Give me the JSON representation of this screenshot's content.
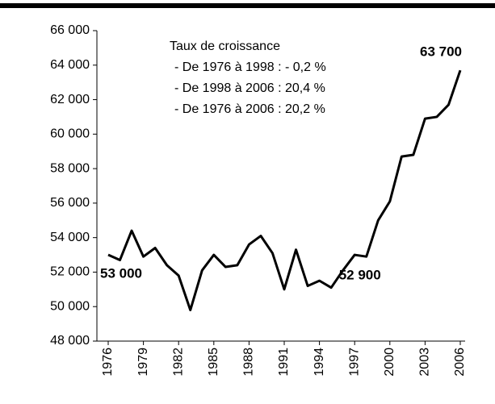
{
  "chart_data": {
    "type": "line",
    "annotations": [
      "Taux de croissance",
      "- De 1976 à 1998 : - 0,2 %",
      "- De 1998 à 2006 : 20,4 %",
      "- De 1976 à 2006 : 20,2 %"
    ],
    "x": [
      1976,
      1977,
      1978,
      1979,
      1980,
      1981,
      1982,
      1983,
      1984,
      1985,
      1986,
      1987,
      1988,
      1989,
      1990,
      1991,
      1992,
      1993,
      1994,
      1995,
      1996,
      1997,
      1998,
      1999,
      2000,
      2001,
      2002,
      2003,
      2004,
      2005,
      2006
    ],
    "series": [
      {
        "color": "#000000",
        "values": [
          53000,
          52700,
          54400,
          52900,
          53400,
          52400,
          51800,
          49800,
          52100,
          53000,
          52300,
          52400,
          53600,
          54100,
          53100,
          51000,
          53300,
          51200,
          51500,
          51100,
          52100,
          53000,
          52900,
          55000,
          56100,
          58700,
          58800,
          60900,
          61000,
          61700,
          63700
        ],
        "value_labels": [
          "53 000",
          null,
          null,
          null,
          null,
          null,
          null,
          null,
          null,
          null,
          null,
          null,
          null,
          null,
          null,
          null,
          null,
          null,
          null,
          null,
          null,
          null,
          "52 900",
          null,
          null,
          null,
          null,
          null,
          null,
          null,
          "63 700"
        ]
      }
    ],
    "xlim": [
      1976,
      2006
    ],
    "xticks": [
      1976,
      1979,
      1982,
      1985,
      1988,
      1991,
      1994,
      1997,
      2000,
      2003,
      2006
    ],
    "ylim": [
      48000,
      66000
    ],
    "yticks": [
      {
        "value": 48000,
        "label": "48 000"
      },
      {
        "value": 50000,
        "label": "50 000"
      },
      {
        "value": 52000,
        "label": "52 000"
      },
      {
        "value": 54000,
        "label": "54 000"
      },
      {
        "value": 56000,
        "label": "56 000"
      },
      {
        "value": 58000,
        "label": "58 000"
      },
      {
        "value": 60000,
        "label": "60 000"
      },
      {
        "value": 62000,
        "label": "62 000"
      },
      {
        "value": 64000,
        "label": "64 000"
      },
      {
        "value": 66000,
        "label": "66 000"
      }
    ],
    "grid": false
  }
}
